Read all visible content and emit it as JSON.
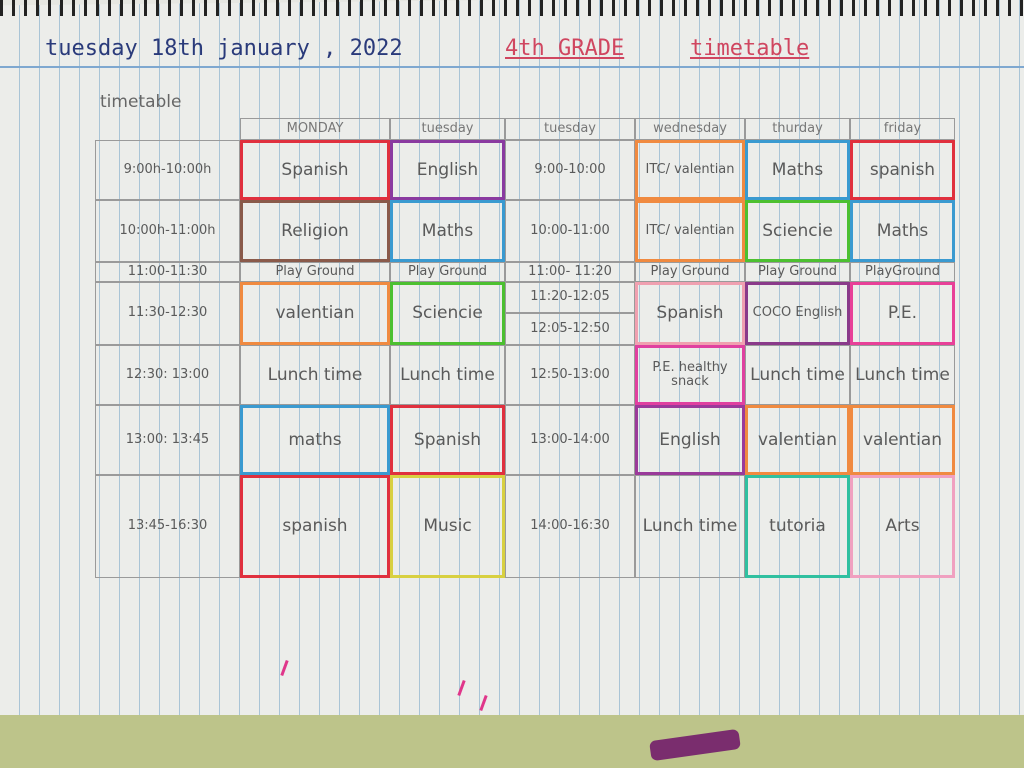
{
  "header": {
    "date": "tuesday  18th  january , 2022",
    "grade": "4th GRADE",
    "title": "timetable"
  },
  "table_label": "timetable",
  "day_headers": [
    "MONDAY",
    "tuesday",
    "tuesday",
    "wednesday",
    "thurday",
    "friday"
  ],
  "times_left": [
    "9:00h-10:00h",
    "10:00h-11:00h",
    "11:00-11:30",
    "11:30-12:30",
    "12:30: 13:00",
    "13:00: 13:45",
    "13:45-16:30"
  ],
  "times_middle": [
    "9:00-10:00",
    "10:00-11:00",
    "11:00- 11:20",
    "11:20-12:05",
    "12:05-12:50",
    "12:50-13:00",
    "13:00-14:00",
    "14:00-16:30"
  ],
  "monday": [
    {
      "text": "Spanish",
      "color": "#e0303e"
    },
    {
      "text": "Religion",
      "color": "#8a5a4a"
    },
    {
      "text": "Play Ground",
      "color": ""
    },
    {
      "text": "valentian",
      "color": "#f08a40"
    },
    {
      "text": "Lunch time",
      "color": ""
    },
    {
      "text": "maths",
      "color": "#3a9ad0"
    },
    {
      "text": "spanish",
      "color": "#e0303e"
    }
  ],
  "tuesday": [
    {
      "text": "English",
      "color": "#8a3aa0"
    },
    {
      "text": "Maths",
      "color": "#3a9ad0"
    },
    {
      "text": "Play Ground",
      "color": ""
    },
    {
      "text": "Sciencie",
      "color": "#4cc030"
    },
    {
      "text": "Lunch time",
      "color": ""
    },
    {
      "text": "Spanish",
      "color": "#e0303e"
    },
    {
      "text": "Music",
      "color": "#d8d040"
    }
  ],
  "wednesday": [
    {
      "text": "ITC/ valentian",
      "color": "#f08a40"
    },
    {
      "text": "ITC/ valentian",
      "color": "#f08a40"
    },
    {
      "text": "Play Ground",
      "color": ""
    },
    {
      "text": "Spanish",
      "color": "#f0a0b0"
    },
    {
      "text": "P.E. healthy snack",
      "color": "#e040a0"
    },
    {
      "text": "English",
      "color": "#9a3a9a"
    },
    {
      "text": "Lunch time",
      "color": ""
    }
  ],
  "thursday": [
    {
      "text": "Maths",
      "color": "#3a9ad0"
    },
    {
      "text": "Sciencie",
      "color": "#4cc030"
    },
    {
      "text": "Play Ground",
      "color": ""
    },
    {
      "text": "COCO English",
      "color": "#8a3a8a"
    },
    {
      "text": "Lunch time",
      "color": ""
    },
    {
      "text": "valentian",
      "color": "#f08a40"
    },
    {
      "text": "tutoria",
      "color": "#30c0a0"
    }
  ],
  "friday": [
    {
      "text": "spanish",
      "color": "#e0303e"
    },
    {
      "text": "Maths",
      "color": "#3a9ad0"
    },
    {
      "text": "PlayGround",
      "color": ""
    },
    {
      "text": "P.E.",
      "color": "#e84098"
    },
    {
      "text": "Lunch time",
      "color": ""
    },
    {
      "text": "valentian",
      "color": "#f08a40"
    },
    {
      "text": "Arts",
      "color": "#f0a0c0"
    }
  ]
}
